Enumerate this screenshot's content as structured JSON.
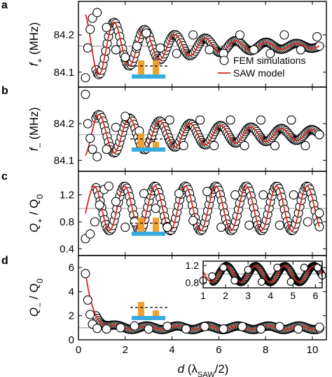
{
  "figure": {
    "xlabel_d": "d",
    "xlabel_rest": " (λ",
    "xlabel_sub": "SAW",
    "xlabel_end": "/2)",
    "legend": {
      "fem": "FEM simulations",
      "saw": "SAW model"
    },
    "colors": {
      "saw_line": "#d9261c",
      "fem_marker": "#000000",
      "schematic_pad": "#f0a030",
      "schematic_base": "#3aabdf",
      "ref_line": "#a8a8a8"
    }
  },
  "chart_data": [
    {
      "panel": "a",
      "type": "scatter",
      "ylabel": {
        "main": "f",
        "sub": "+",
        "unit": " (MHz)"
      },
      "xlim": [
        0,
        10.6
      ],
      "ylim": [
        84.06,
        84.29
      ],
      "yticks": [
        "84.1",
        "84.2"
      ],
      "ytick_values": [
        84.1,
        84.2
      ],
      "xticks": [],
      "reference_line": 84.17,
      "schematic": "equal-pads",
      "model": {
        "offset": 84.17,
        "amplitude": 0.09,
        "phase": 0.45,
        "decay": 0.28,
        "period": 1.3
      },
      "points": [
        [
          0.3,
          84.085
        ],
        [
          0.4,
          84.165
        ],
        [
          0.5,
          84.215
        ],
        [
          0.6,
          84.245
        ],
        [
          0.8,
          84.26
        ],
        [
          1.2,
          84.22
        ],
        [
          1.6,
          84.16
        ],
        [
          2.0,
          84.14
        ],
        [
          2.5,
          84.17
        ],
        [
          2.9,
          84.205
        ],
        [
          3.5,
          84.165
        ],
        [
          4.2,
          84.15
        ],
        [
          4.9,
          84.2
        ],
        [
          5.6,
          84.16
        ],
        [
          6.2,
          84.15
        ],
        [
          6.9,
          84.2
        ],
        [
          7.5,
          84.16
        ],
        [
          8.2,
          84.15
        ],
        [
          8.8,
          84.2
        ],
        [
          9.5,
          84.16
        ],
        [
          10.2,
          84.195
        ]
      ]
    },
    {
      "panel": "b",
      "type": "scatter",
      "ylabel": {
        "main": "f",
        "sub": "−",
        "unit": " (MHz)"
      },
      "xlim": [
        0,
        10.6
      ],
      "ylim": [
        84.07,
        84.3
      ],
      "yticks": [
        "84.1",
        "84.2"
      ],
      "ytick_values": [
        84.1,
        84.2
      ],
      "xticks": [],
      "reference_line": 84.17,
      "schematic": "tall-short-pads",
      "model": {
        "offset": 84.17,
        "amplitude": 0.06,
        "phase": 3.6,
        "decay": 0.15,
        "period": 1.3
      },
      "points": [
        [
          0.3,
          84.28
        ],
        [
          0.4,
          84.2
        ],
        [
          0.5,
          84.16
        ],
        [
          0.6,
          84.13
        ],
        [
          0.8,
          84.11
        ],
        [
          1.2,
          84.13
        ],
        [
          1.6,
          84.19
        ],
        [
          2.0,
          84.22
        ],
        [
          2.6,
          84.18
        ],
        [
          3.2,
          84.14
        ],
        [
          3.9,
          84.21
        ],
        [
          4.5,
          84.14
        ],
        [
          5.2,
          84.21
        ],
        [
          5.8,
          84.14
        ],
        [
          6.5,
          84.21
        ],
        [
          7.1,
          84.14
        ],
        [
          7.8,
          84.21
        ],
        [
          8.4,
          84.14
        ],
        [
          9.1,
          84.21
        ],
        [
          9.7,
          84.14
        ],
        [
          10.3,
          84.17
        ]
      ]
    },
    {
      "panel": "c",
      "type": "scatter",
      "ylabel": {
        "main": "Q",
        "sub": "+",
        "unit": " / Q",
        "unit_sub": "0"
      },
      "xlim": [
        0,
        10.6
      ],
      "ylim": [
        0.3,
        1.55
      ],
      "yticks": [
        "0.4",
        "0.8",
        "1.2"
      ],
      "ytick_values": [
        0.4,
        0.8,
        1.2
      ],
      "xticks": [],
      "reference_line": 1.0,
      "schematic": "equal-pads",
      "model": {
        "offset": 1.0,
        "amplitude": 0.33,
        "phase": 4.6,
        "decay": 0.0,
        "period": 1.3
      },
      "points": [
        [
          0.3,
          0.55
        ],
        [
          0.5,
          0.62
        ],
        [
          0.7,
          0.8
        ],
        [
          0.9,
          1.05
        ],
        [
          1.1,
          1.28
        ],
        [
          1.3,
          1.33
        ],
        [
          1.6,
          1.1
        ],
        [
          2.0,
          0.72
        ],
        [
          2.4,
          0.8
        ],
        [
          2.8,
          1.22
        ],
        [
          3.3,
          1.0
        ],
        [
          3.8,
          0.72
        ],
        [
          4.3,
          1.22
        ],
        [
          4.9,
          0.82
        ],
        [
          5.5,
          1.25
        ],
        [
          6.1,
          0.72
        ],
        [
          6.7,
          1.2
        ],
        [
          7.3,
          0.75
        ],
        [
          7.9,
          1.2
        ],
        [
          8.6,
          0.75
        ],
        [
          9.2,
          1.2
        ],
        [
          9.8,
          0.8
        ],
        [
          10.3,
          0.93
        ]
      ]
    },
    {
      "panel": "d",
      "type": "scatter",
      "ylabel": {
        "main": "Q",
        "sub": "−",
        "unit": " / Q",
        "unit_sub": "0"
      },
      "xlim": [
        0,
        10.6
      ],
      "ylim": [
        0,
        7
      ],
      "yticks": [
        "0",
        "2",
        "4",
        "6"
      ],
      "ytick_values": [
        0,
        2,
        4,
        6
      ],
      "xticks": [
        "0",
        "2",
        "4",
        "6",
        "8",
        "10"
      ],
      "xtick_values": [
        0,
        2,
        4,
        6,
        8,
        10
      ],
      "reference_line": 1.0,
      "schematic": "tall-short-pads",
      "model": {
        "offset": 1.0,
        "amplitude": 0.15,
        "phase": 0.0,
        "decay": 0.0,
        "period": 1.3,
        "rise": {
          "x0": 0.3,
          "y0": 5.5,
          "rate": 3.2
        }
      },
      "points": [
        [
          0.3,
          5.5
        ],
        [
          0.4,
          3.3
        ],
        [
          0.5,
          2.1
        ],
        [
          0.6,
          1.3
        ],
        [
          0.8,
          0.95
        ],
        [
          1.2,
          0.9
        ],
        [
          1.8,
          1.0
        ],
        [
          2.4,
          1.15
        ],
        [
          3.0,
          0.9
        ],
        [
          3.8,
          1.12
        ],
        [
          4.6,
          0.9
        ],
        [
          5.4,
          1.1
        ],
        [
          6.2,
          0.9
        ],
        [
          7.0,
          1.1
        ],
        [
          7.8,
          0.9
        ],
        [
          8.6,
          1.1
        ],
        [
          9.4,
          0.9
        ],
        [
          10.3,
          1.05
        ]
      ]
    },
    {
      "panel": "d-inset",
      "type": "scatter",
      "xlim": [
        1,
        6.3
      ],
      "ylim": [
        0.68,
        1.3
      ],
      "yticks": [
        "0.8",
        "1.2"
      ],
      "ytick_values": [
        0.8,
        1.2
      ],
      "xticks": [
        "1",
        "2",
        "3",
        "4",
        "5",
        "6"
      ],
      "xtick_values": [
        1,
        2,
        3,
        4,
        5,
        6
      ],
      "reference_line": 1.0,
      "model": {
        "offset": 1.0,
        "amplitude": 0.19,
        "phase": 4.3,
        "decay": 0.0,
        "period": 1.3
      },
      "points": [
        [
          1.0,
          0.85
        ],
        [
          1.4,
          0.95
        ],
        [
          1.9,
          1.15
        ],
        [
          2.4,
          0.85
        ],
        [
          3.0,
          1.1
        ],
        [
          3.6,
          0.82
        ],
        [
          4.3,
          1.15
        ],
        [
          4.9,
          0.82
        ],
        [
          5.5,
          1.15
        ],
        [
          6.1,
          1.15
        ]
      ]
    }
  ]
}
